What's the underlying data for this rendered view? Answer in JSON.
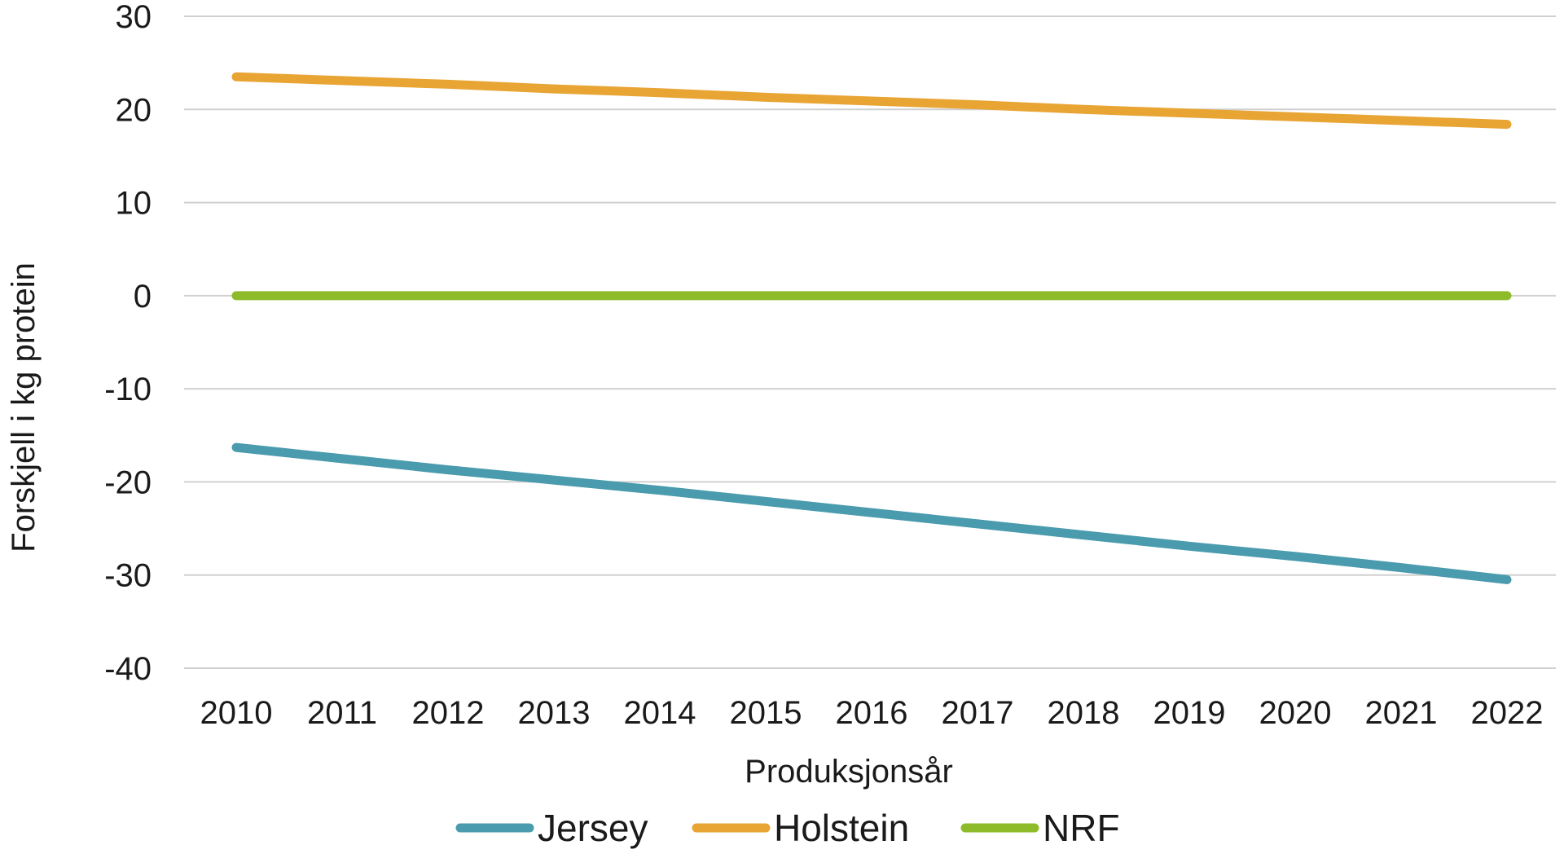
{
  "chart_data": {
    "type": "line",
    "title": "",
    "xlabel": "Produksjonsår",
    "ylabel": "Forskjell i kg protein",
    "x": [
      "2010",
      "2011",
      "2012",
      "2013",
      "2014",
      "2015",
      "2016",
      "2017",
      "2018",
      "2019",
      "2020",
      "2021",
      "2022"
    ],
    "y_ticks": [
      "30",
      "20",
      "10",
      "0",
      "-10",
      "-20",
      "-30",
      "-40"
    ],
    "ylim": [
      -40,
      30
    ],
    "grid": true,
    "legend_position": "bottom",
    "series": [
      {
        "name": "Jersey",
        "color": "#4a9bad",
        "values": [
          -16.3,
          -17.5,
          -18.7,
          -19.8,
          -20.9,
          -22.1,
          -23.3,
          -24.5,
          -25.7,
          -26.9,
          -28.0,
          -29.2,
          -30.5
        ]
      },
      {
        "name": "Holstein",
        "color": "#e8a533",
        "values": [
          23.5,
          23.1,
          22.7,
          22.2,
          21.8,
          21.3,
          20.9,
          20.5,
          20.0,
          19.6,
          19.2,
          18.8,
          18.4
        ]
      },
      {
        "name": "NRF",
        "color": "#8dbb2a",
        "values": [
          0,
          0,
          0,
          0,
          0,
          0,
          0,
          0,
          0,
          0,
          0,
          0,
          0
        ]
      }
    ]
  }
}
